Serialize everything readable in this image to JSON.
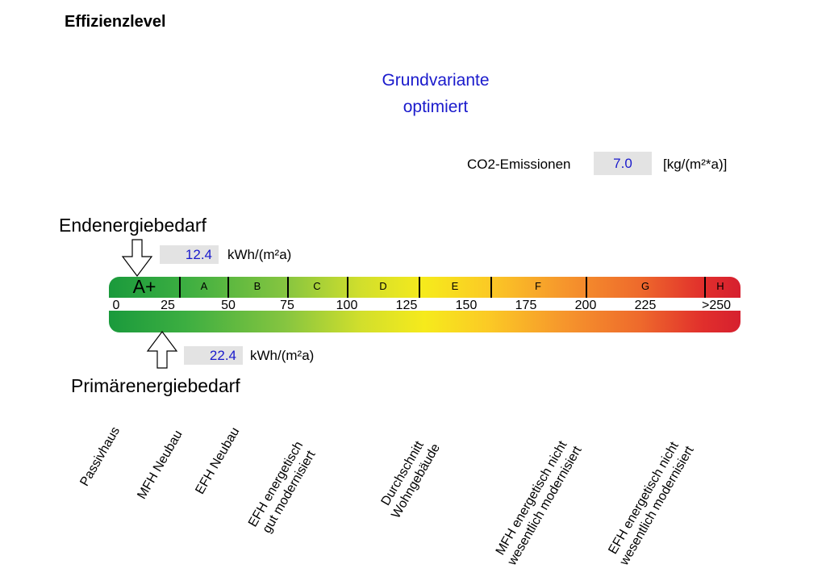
{
  "title": "Effizienzlevel",
  "variant": {
    "line1": "Grundvariante",
    "line2": "optimiert"
  },
  "co2": {
    "label": "CO2-Emissionen",
    "value": "7.0",
    "unit": "[kg/(m²*a)]"
  },
  "endenergie": {
    "title": "Endenergiebedarf",
    "value": "12.4",
    "unit": "kWh/(m²a)"
  },
  "primaerenergie": {
    "title": "Primärenergiebedarf",
    "value": "22.4",
    "unit": "kWh/(m²a)"
  },
  "scale": {
    "classes": [
      "A+",
      "A",
      "B",
      "C",
      "D",
      "E",
      "F",
      "G",
      "H"
    ],
    "ticks": [
      "0",
      "25",
      "50",
      "75",
      "100",
      "125",
      "150",
      "175",
      "200",
      "225",
      ">250"
    ]
  },
  "building_types": [
    {
      "line1": "Passivhaus",
      "line2": ""
    },
    {
      "line1": "MFH Neubau",
      "line2": ""
    },
    {
      "line1": "EFH Neubau",
      "line2": ""
    },
    {
      "line1": "EFH energetisch",
      "line2": "gut modernisiert"
    },
    {
      "line1": "Durchschnitt",
      "line2": "Wohngebäude"
    },
    {
      "line1": "MFH energetisch nicht",
      "line2": "wesentlich modernisiert"
    },
    {
      "line1": "EFH energetisch nicht",
      "line2": "wesentlich modernisiert"
    }
  ],
  "colors": {
    "value_text": "#1a1acc",
    "value_box": "#e3e3e3",
    "scale_start": "#1a9a3c",
    "scale_end": "#d6202f"
  }
}
